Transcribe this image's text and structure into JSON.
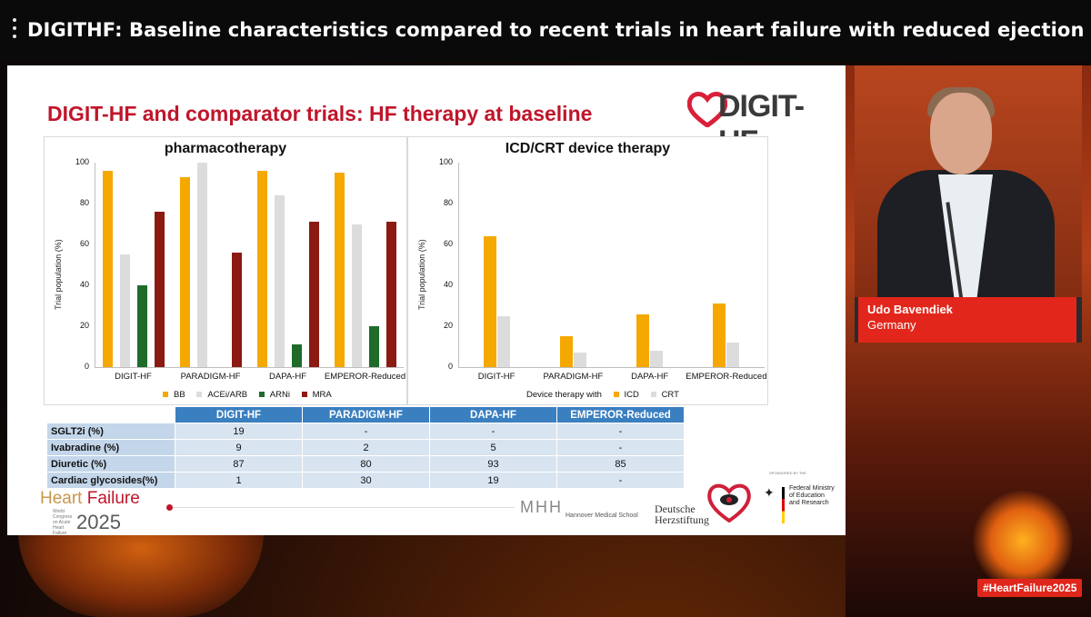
{
  "window": {
    "title": "DIGITHF: Baseline characteristics compared to recent trials in heart failure with reduced ejection fr..."
  },
  "slide": {
    "title": "DIGIT-HF and comparator trials: HF therapy at baseline",
    "logo_text": "DIGIT-HF",
    "left_panel": {
      "title": "pharmacotherapy",
      "ylabel": "Trial population (%)",
      "legend": [
        "BB",
        "ACEi/ARB",
        "ARNi",
        "MRA"
      ]
    },
    "right_panel": {
      "title": "ICD/CRT device therapy",
      "ylabel": "Trial population (%)",
      "legend_prefix": "Device therapy with",
      "legend": [
        "ICD",
        "CRT"
      ]
    },
    "table": {
      "headers": [
        "DIGIT-HF",
        "PARADIGM-HF",
        "DAPA-HF",
        "EMPEROR-Reduced"
      ],
      "rows": [
        {
          "label": "SGLT2i (%)",
          "values": [
            "19",
            "-",
            "-",
            "-"
          ]
        },
        {
          "label": "Ivabradine (%)",
          "values": [
            "9",
            "2",
            "5",
            "-"
          ]
        },
        {
          "label": "Diuretic (%)",
          "values": [
            "87",
            "80",
            "93",
            "85"
          ]
        },
        {
          "label": "Cardiac glycosides(%)",
          "values": [
            "1",
            "30",
            "19",
            "-"
          ]
        }
      ]
    },
    "footer": {
      "hf_logo_a": "Heart ",
      "hf_logo_b": "Failure",
      "hf_year": "2025",
      "hf_small": "World Congress on Acute Heart Failure",
      "mhh": "MHH",
      "mhh_sub": "Hannover Medical School",
      "dhs_1": "Deutsche",
      "dhs_2": "Herzstiftung",
      "sponsored": "SPONSORED BY THE",
      "bmbf_1": "Federal Ministry",
      "bmbf_2": "of Education",
      "bmbf_3": "and Research"
    }
  },
  "speaker": {
    "name": "Udo Bavendiek",
    "country": "Germany"
  },
  "hashtag": "#HeartFailure2025",
  "colors": {
    "bb": "#f5a800",
    "acei": "#dcdcdc",
    "arni": "#1f6b2a",
    "mra": "#8b1a12",
    "icd": "#f5a800",
    "crt": "#dcdcdc",
    "accent": "#c0152b",
    "table_header": "#3a7fc0"
  },
  "chart_data": [
    {
      "type": "bar",
      "title": "pharmacotherapy",
      "ylabel": "Trial population (%)",
      "ylim": [
        0,
        100
      ],
      "yticks": [
        0,
        20,
        40,
        60,
        80,
        100
      ],
      "categories": [
        "DIGIT-HF",
        "PARADIGM-HF",
        "DAPA-HF",
        "EMPEROR-Reduced"
      ],
      "series": [
        {
          "name": "BB",
          "values": [
            96,
            93,
            96,
            95
          ]
        },
        {
          "name": "ACEi/ARB",
          "values": [
            55,
            100,
            84,
            70
          ]
        },
        {
          "name": "ARNi",
          "values": [
            40,
            0,
            11,
            20
          ]
        },
        {
          "name": "MRA",
          "values": [
            76,
            56,
            71,
            71
          ]
        }
      ],
      "legend": "bottom"
    },
    {
      "type": "bar",
      "title": "ICD/CRT device therapy",
      "ylabel": "Trial population (%)",
      "ylim": [
        0,
        100
      ],
      "yticks": [
        0,
        20,
        40,
        60,
        80,
        100
      ],
      "categories": [
        "DIGIT-HF",
        "PARADIGM-HF",
        "DAPA-HF",
        "EMPEROR-Reduced"
      ],
      "series": [
        {
          "name": "ICD",
          "values": [
            64,
            15,
            26,
            31
          ]
        },
        {
          "name": "CRT",
          "values": [
            25,
            7,
            8,
            12
          ]
        }
      ],
      "legend": "bottom"
    }
  ]
}
